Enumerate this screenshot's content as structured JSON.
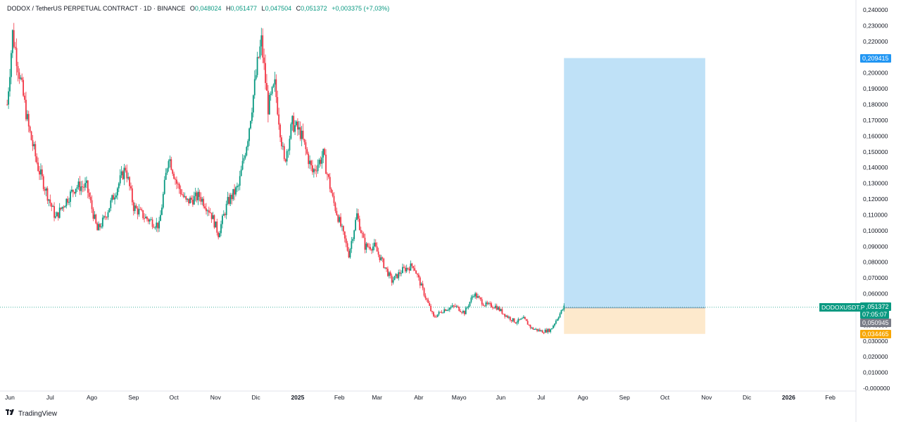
{
  "header": {
    "symbol": "DODOX / TetherUS PERPETUAL CONTRACT · 1D · BINANCE",
    "o_label": "O",
    "o_value": "0,048024",
    "h_label": "H",
    "h_value": "0,051477",
    "l_label": "L",
    "l_value": "0,047504",
    "c_label": "C",
    "c_value": "0,051372",
    "change": "+0,003375 (+7,03%)"
  },
  "brand": {
    "logo_icon": "tradingview-logo-icon",
    "name": "TradingView"
  },
  "tags": {
    "target": "0,209415",
    "last_price": "0,051372",
    "countdown": "07:05:07",
    "entry": "0,050945",
    "stop": "0,034465",
    "symbol_label": "DODOXUSDT.P"
  },
  "colors": {
    "up": "#089981",
    "down": "#f23645",
    "target_zone": "#bfe1f7",
    "stop_zone": "#fde9cc",
    "target_tag": "#2196f3",
    "stop_tag": "#f7a600",
    "entry_tag": "#787b86"
  },
  "chart_data": {
    "type": "candlestick",
    "y_ticks": [
      "0,240000",
      "0,230000",
      "0,220000",
      "0,210000",
      "0,200000",
      "0,190000",
      "0,180000",
      "0,170000",
      "0,160000",
      "0,150000",
      "0,140000",
      "0,130000",
      "0,120000",
      "0,110000",
      "0,100000",
      "0,090000",
      "0,080000",
      "0,070000",
      "0,060000",
      "0,050000",
      "0,040000",
      "0,030000",
      "0,020000",
      "0,010000",
      "-0,000000"
    ],
    "ylim": [
      0,
      0.24
    ],
    "x_ticks": [
      "Jun",
      "Jul",
      "Ago",
      "Sep",
      "Oct",
      "Nov",
      "Dic",
      "2025",
      "Feb",
      "Mar",
      "Abr",
      "Mayo",
      "Jun",
      "Jul",
      "Ago",
      "Sep",
      "Oct",
      "Nov",
      "Dic",
      "2026",
      "Feb"
    ],
    "x_dates": [
      "2024-06-01",
      "2024-07-01",
      "2024-08-01",
      "2024-09-01",
      "2024-10-01",
      "2024-11-01",
      "2024-12-01",
      "2025-01-01",
      "2025-02-01",
      "2025-03-01",
      "2025-04-01",
      "2025-05-01",
      "2025-06-01",
      "2025-07-01",
      "2025-08-01",
      "2025-09-01",
      "2025-10-01",
      "2025-11-01",
      "2025-12-01",
      "2026-01-01",
      "2026-02-01"
    ],
    "close_path": [
      [
        "2024-05-30",
        0.18
      ],
      [
        "2024-06-03",
        0.225
      ],
      [
        "2024-06-08",
        0.2
      ],
      [
        "2024-06-15",
        0.165
      ],
      [
        "2024-06-22",
        0.14
      ],
      [
        "2024-06-28",
        0.125
      ],
      [
        "2024-07-05",
        0.108
      ],
      [
        "2024-07-12",
        0.118
      ],
      [
        "2024-07-20",
        0.128
      ],
      [
        "2024-07-28",
        0.128
      ],
      [
        "2024-08-05",
        0.1
      ],
      [
        "2024-08-10",
        0.107
      ],
      [
        "2024-08-20",
        0.128
      ],
      [
        "2024-08-26",
        0.14
      ],
      [
        "2024-09-01",
        0.115
      ],
      [
        "2024-09-10",
        0.108
      ],
      [
        "2024-09-20",
        0.103
      ],
      [
        "2024-09-27",
        0.148
      ],
      [
        "2024-10-03",
        0.13
      ],
      [
        "2024-10-10",
        0.118
      ],
      [
        "2024-10-20",
        0.122
      ],
      [
        "2024-10-28",
        0.112
      ],
      [
        "2024-11-03",
        0.098
      ],
      [
        "2024-11-10",
        0.118
      ],
      [
        "2024-11-18",
        0.128
      ],
      [
        "2024-11-25",
        0.16
      ],
      [
        "2024-12-02",
        0.205
      ],
      [
        "2024-12-05",
        0.22
      ],
      [
        "2024-12-10",
        0.178
      ],
      [
        "2024-12-15",
        0.192
      ],
      [
        "2024-12-22",
        0.143
      ],
      [
        "2024-12-28",
        0.168
      ],
      [
        "2025-01-03",
        0.162
      ],
      [
        "2025-01-12",
        0.137
      ],
      [
        "2025-01-20",
        0.148
      ],
      [
        "2025-01-27",
        0.12
      ],
      [
        "2025-02-03",
        0.1
      ],
      [
        "2025-02-08",
        0.085
      ],
      [
        "2025-02-14",
        0.11
      ],
      [
        "2025-02-20",
        0.09
      ],
      [
        "2025-02-27",
        0.09
      ],
      [
        "2025-03-05",
        0.08
      ],
      [
        "2025-03-12",
        0.068
      ],
      [
        "2025-03-20",
        0.075
      ],
      [
        "2025-03-28",
        0.078
      ],
      [
        "2025-04-05",
        0.06
      ],
      [
        "2025-04-12",
        0.045
      ],
      [
        "2025-04-20",
        0.05
      ],
      [
        "2025-04-28",
        0.052
      ],
      [
        "2025-05-05",
        0.048
      ],
      [
        "2025-05-12",
        0.06
      ],
      [
        "2025-05-20",
        0.053
      ],
      [
        "2025-05-28",
        0.052
      ],
      [
        "2025-06-05",
        0.046
      ],
      [
        "2025-06-12",
        0.042
      ],
      [
        "2025-06-18",
        0.044
      ],
      [
        "2025-06-24",
        0.038
      ],
      [
        "2025-07-02",
        0.036
      ],
      [
        "2025-07-08",
        0.037
      ],
      [
        "2025-07-14",
        0.046
      ],
      [
        "2025-07-18",
        0.051372
      ]
    ],
    "position": {
      "type": "long",
      "entry": 0.050945,
      "target": 0.209415,
      "stop": 0.034465,
      "start_date": "2025-07-18",
      "end_date": "2025-10-31"
    },
    "grid": false
  }
}
